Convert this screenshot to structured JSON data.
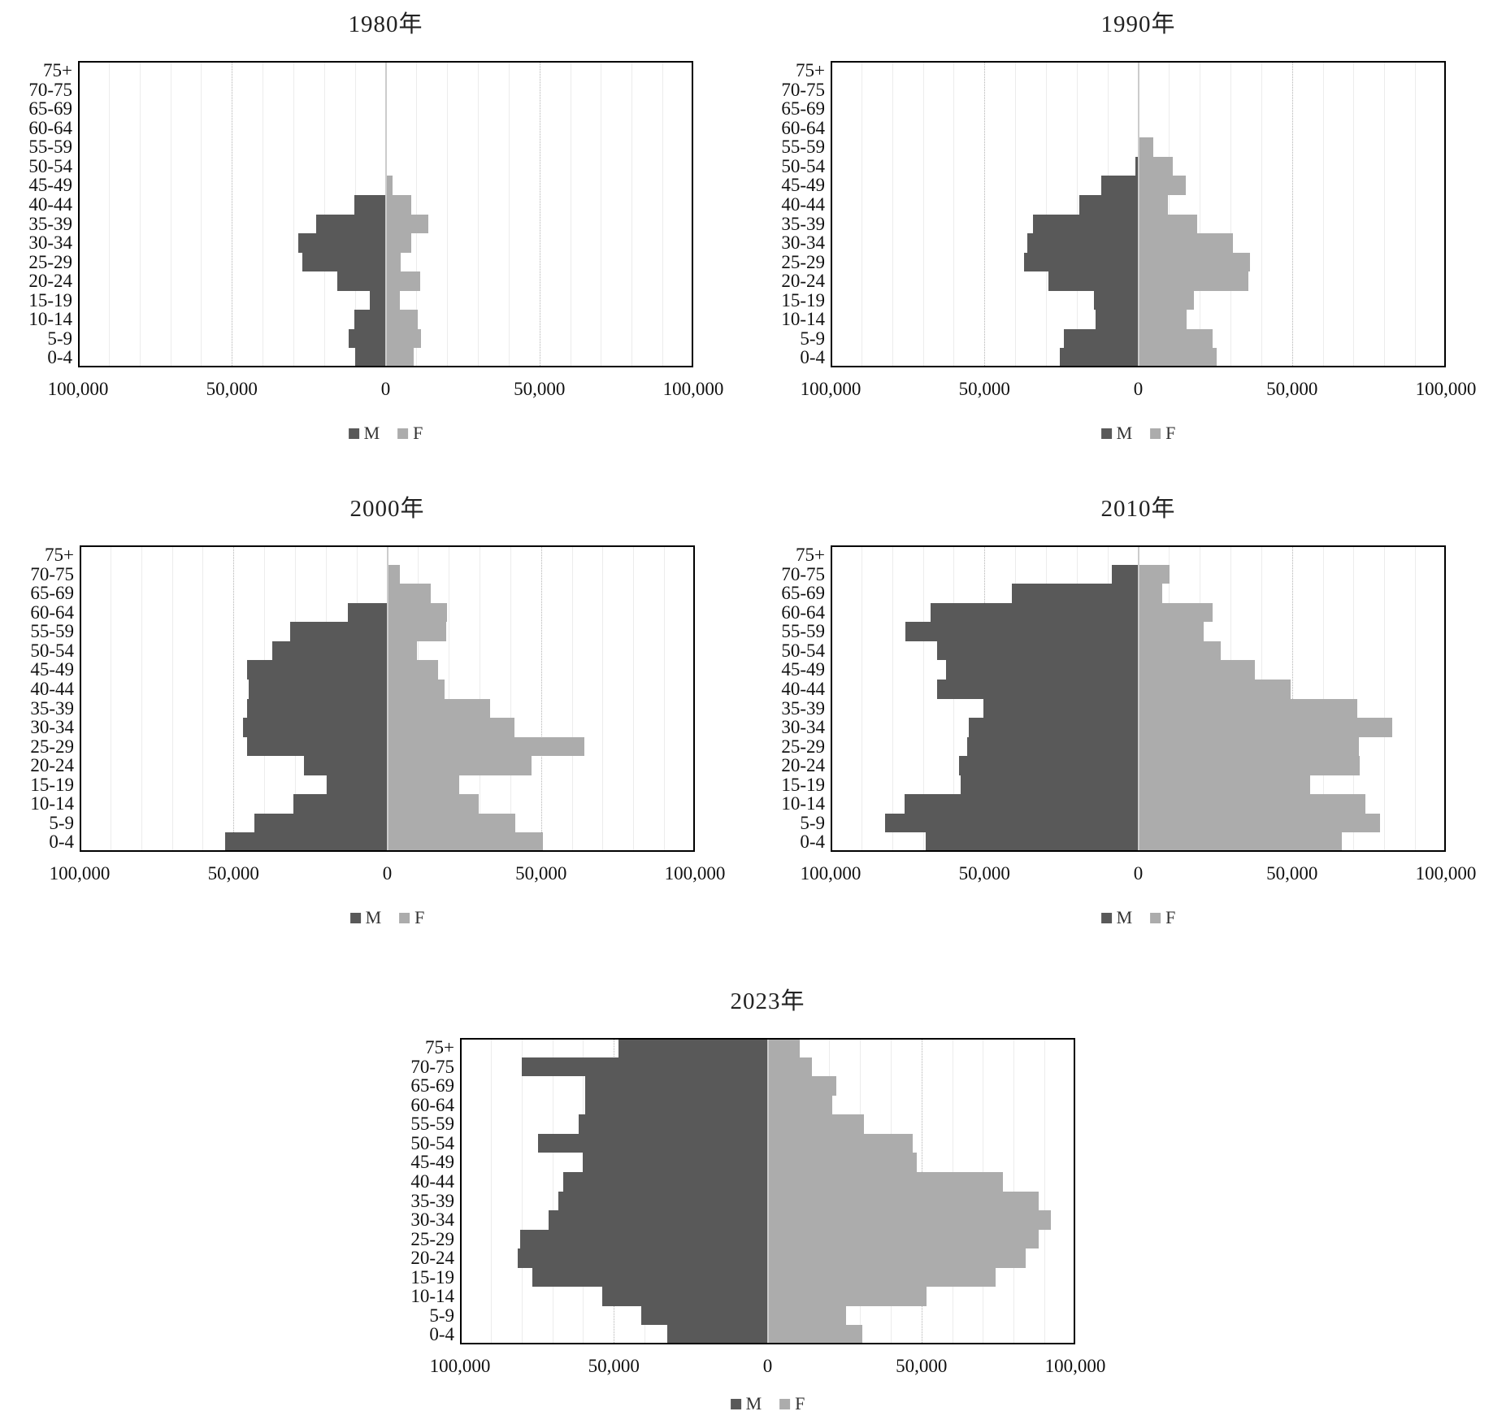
{
  "common": {
    "legend": {
      "male": "M",
      "female": "F"
    },
    "colors": {
      "male": "#595959",
      "female": "#ACACAC"
    },
    "age_groups": [
      "75+",
      "70-75",
      "65-69",
      "60-64",
      "55-59",
      "50-54",
      "45-49",
      "40-44",
      "35-39",
      "30-34",
      "25-29",
      "20-24",
      "15-19",
      "10-14",
      "5-9",
      "0-4"
    ],
    "x_ticks": [
      "100,000",
      "50,000",
      "0",
      "50,000",
      "100,000"
    ]
  },
  "chart_data": [
    {
      "type": "bar",
      "subtype": "population-pyramid",
      "title": "1980年",
      "xlim": [
        -100000,
        100000
      ],
      "gridline_step": 10000,
      "dotted_gridlines": [
        -50000,
        50000
      ],
      "legend_position": "bottom",
      "categories": [
        "75+",
        "70-75",
        "65-69",
        "60-64",
        "55-59",
        "50-54",
        "45-49",
        "40-44",
        "35-39",
        "30-34",
        "25-29",
        "20-24",
        "15-19",
        "10-14",
        "5-9",
        "0-4"
      ],
      "series": [
        {
          "name": "M",
          "values": [
            0,
            0,
            0,
            0,
            0,
            0,
            0,
            10100,
            22500,
            28500,
            27000,
            15700,
            5100,
            10100,
            12000,
            10000
          ]
        },
        {
          "name": "F",
          "values": [
            0,
            0,
            0,
            0,
            0,
            0,
            2200,
            8300,
            14000,
            8300,
            5000,
            11100,
            4600,
            10400,
            11400,
            9000
          ]
        }
      ]
    },
    {
      "type": "bar",
      "subtype": "population-pyramid",
      "title": "1990年",
      "xlim": [
        -100000,
        100000
      ],
      "gridline_step": 10000,
      "dotted_gridlines": [
        -50000,
        50000
      ],
      "legend_position": "bottom",
      "categories": [
        "75+",
        "70-75",
        "65-69",
        "60-64",
        "55-59",
        "50-54",
        "45-49",
        "40-44",
        "35-39",
        "30-34",
        "25-29",
        "20-24",
        "15-19",
        "10-14",
        "5-9",
        "0-4"
      ],
      "series": [
        {
          "name": "M",
          "values": [
            0,
            0,
            0,
            0,
            0,
            800,
            12000,
            19200,
            34200,
            36100,
            37200,
            29100,
            14500,
            13900,
            24200,
            25600
          ]
        },
        {
          "name": "F",
          "values": [
            0,
            0,
            0,
            0,
            4800,
            11300,
            15400,
            9700,
            19200,
            30800,
            36300,
            35900,
            18200,
            15700,
            24100,
            25600
          ]
        }
      ]
    },
    {
      "type": "bar",
      "subtype": "population-pyramid",
      "title": "2000年",
      "xlim": [
        -100000,
        100000
      ],
      "gridline_step": 10000,
      "dotted_gridlines": [
        -50000,
        50000
      ],
      "legend_position": "bottom",
      "categories": [
        "75+",
        "70-75",
        "65-69",
        "60-64",
        "55-59",
        "50-54",
        "45-49",
        "40-44",
        "35-39",
        "30-34",
        "25-29",
        "20-24",
        "15-19",
        "10-14",
        "5-9",
        "0-4"
      ],
      "series": [
        {
          "name": "M",
          "values": [
            0,
            0,
            0,
            12900,
            31600,
            37400,
            45500,
            45100,
            45500,
            46900,
            45500,
            27000,
            19800,
            30400,
            43300,
            52700
          ]
        },
        {
          "name": "F",
          "values": [
            0,
            4000,
            14100,
            19400,
            19200,
            9700,
            16600,
            18700,
            33500,
            41400,
            64000,
            46900,
            23300,
            29800,
            41600,
            50700
          ]
        }
      ]
    },
    {
      "type": "bar",
      "subtype": "population-pyramid",
      "title": "2010年",
      "xlim": [
        -100000,
        100000
      ],
      "gridline_step": 10000,
      "dotted_gridlines": [
        -50000,
        50000
      ],
      "legend_position": "bottom",
      "categories": [
        "75+",
        "70-75",
        "65-69",
        "60-64",
        "55-59",
        "50-54",
        "45-49",
        "40-44",
        "35-39",
        "30-34",
        "25-29",
        "20-24",
        "15-19",
        "10-14",
        "5-9",
        "0-4"
      ],
      "series": [
        {
          "name": "M",
          "values": [
            0,
            8500,
            41200,
            67400,
            75600,
            65400,
            62600,
            65400,
            50400,
            55100,
            55500,
            58300,
            57800,
            76000,
            82400,
            69200
          ]
        },
        {
          "name": "F",
          "values": [
            0,
            10300,
            7800,
            24300,
            21300,
            26800,
            37800,
            49600,
            71300,
            82600,
            71700,
            71900,
            55900,
            73900,
            78700,
            66100
          ]
        }
      ]
    },
    {
      "type": "bar",
      "subtype": "population-pyramid",
      "title": "2023年",
      "xlim": [
        -100000,
        100000
      ],
      "gridline_step": 10000,
      "dotted_gridlines": [
        -50000,
        50000
      ],
      "legend_position": "bottom",
      "categories": [
        "75+",
        "70-75",
        "65-69",
        "60-64",
        "55-59",
        "50-54",
        "45-49",
        "40-44",
        "35-39",
        "30-34",
        "25-29",
        "20-24",
        "15-19",
        "10-14",
        "5-9",
        "0-4"
      ],
      "series": [
        {
          "name": "M",
          "values": [
            48400,
            79800,
            59200,
            59200,
            61500,
            74600,
            60200,
            66500,
            68100,
            71300,
            80400,
            81200,
            76600,
            53700,
            41200,
            32700
          ]
        },
        {
          "name": "F",
          "values": [
            10500,
            14400,
            22300,
            20900,
            31400,
            47100,
            48400,
            76600,
            88000,
            92000,
            88000,
            84000,
            74000,
            51700,
            25500,
            30800
          ]
        }
      ]
    }
  ]
}
